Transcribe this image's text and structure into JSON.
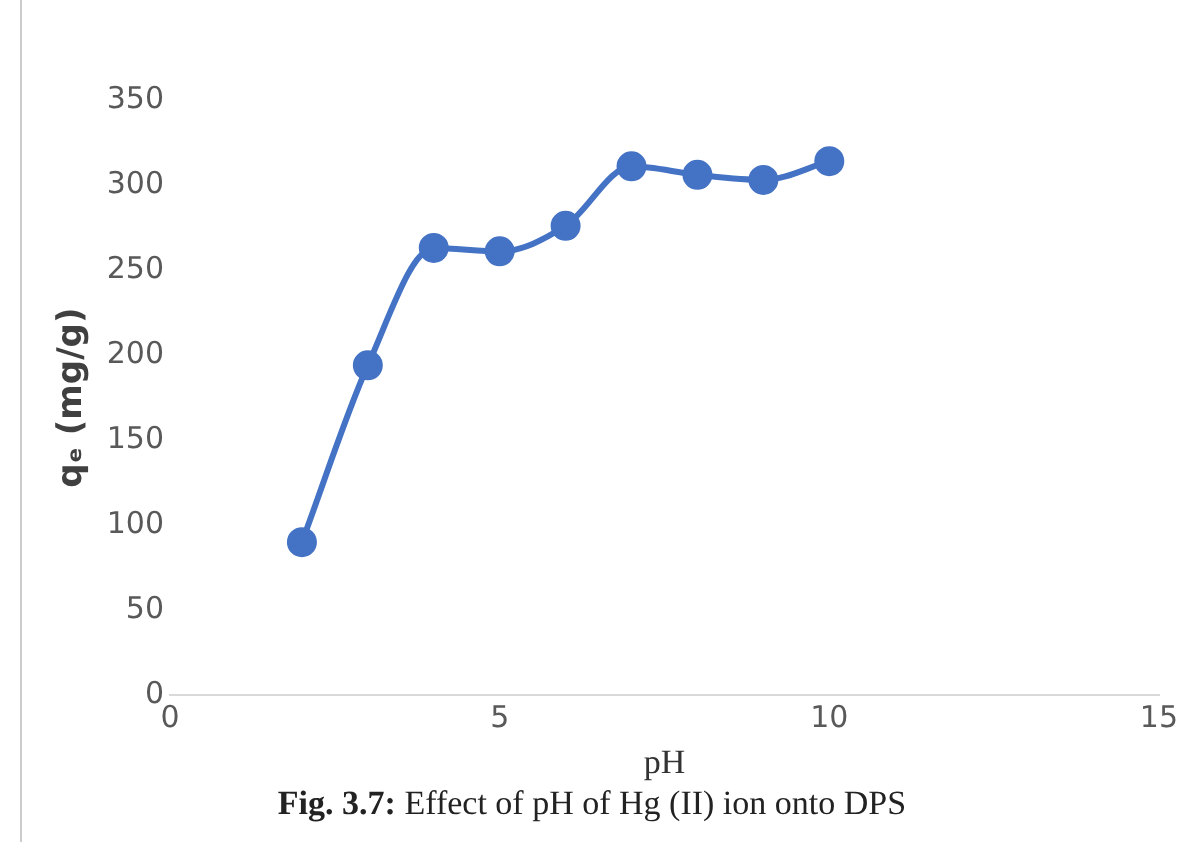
{
  "chart_data": {
    "type": "line",
    "xlabel": "pH",
    "ylabel": "qₑ (mg/g)",
    "x": [
      2,
      3,
      4,
      5,
      6,
      7,
      8,
      9,
      10
    ],
    "series": [
      {
        "color": "#4472c4",
        "values": [
          90,
          194,
          263,
          261,
          276,
          311,
          306,
          303,
          314
        ]
      }
    ],
    "xlim": [
      0,
      15
    ],
    "xticks": [
      0,
      5,
      10,
      15
    ],
    "ylim": [
      0,
      350
    ],
    "yticks": [
      0,
      50,
      100,
      150,
      200,
      250,
      300,
      350
    ],
    "grid": false,
    "legend": false,
    "marker": "circle",
    "line_style": "solid",
    "annotations": [
      "Fig. 3.7: Effect of pH of Hg (II) ion onto DPS"
    ]
  }
}
